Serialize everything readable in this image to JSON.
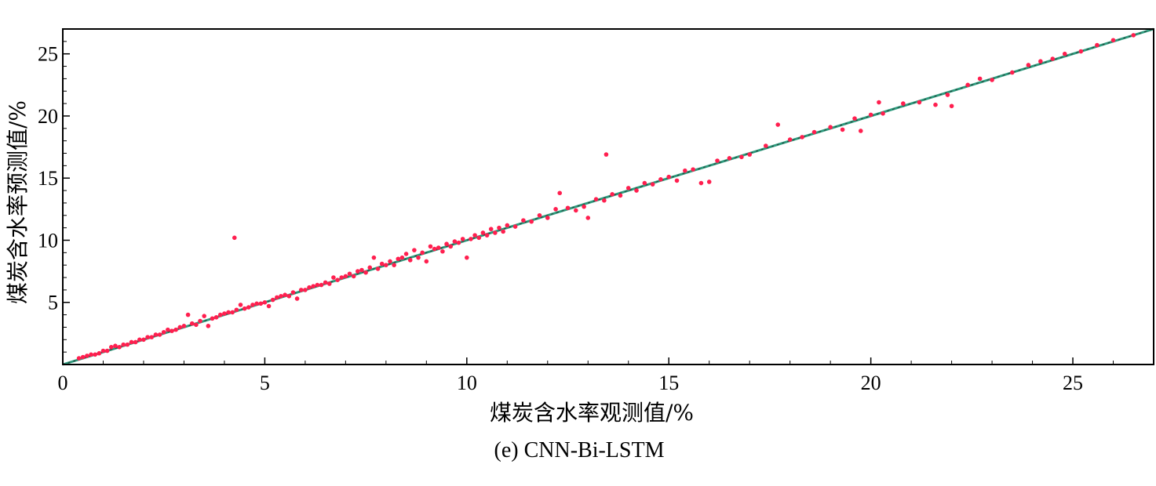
{
  "chart_data": {
    "type": "scatter",
    "title": "",
    "caption": "(e) CNN-Bi-LSTM",
    "xlabel": "煤炭含水率观测值/%",
    "ylabel": "煤炭含水率预测值/%",
    "xlim": [
      0,
      27
    ],
    "ylim": [
      0,
      27
    ],
    "x_ticks": [
      0,
      5,
      10,
      15,
      20,
      25
    ],
    "y_ticks": [
      5,
      10,
      15,
      20,
      25
    ],
    "grid": false,
    "reference_line": {
      "from": [
        0,
        0
      ],
      "to": [
        27,
        27
      ],
      "color": "#2e9c7e"
    },
    "colors": {
      "points": "#ff1f4f",
      "line": "#2e9c7e",
      "dense": "#222222",
      "axis": "#000000"
    },
    "points": [
      [
        0.4,
        0.5
      ],
      [
        0.5,
        0.6
      ],
      [
        0.6,
        0.7
      ],
      [
        0.7,
        0.8
      ],
      [
        0.8,
        0.8
      ],
      [
        0.9,
        0.9
      ],
      [
        1.0,
        1.1
      ],
      [
        1.1,
        1.1
      ],
      [
        1.2,
        1.4
      ],
      [
        1.3,
        1.5
      ],
      [
        1.4,
        1.4
      ],
      [
        1.5,
        1.6
      ],
      [
        1.6,
        1.6
      ],
      [
        1.7,
        1.8
      ],
      [
        1.8,
        1.8
      ],
      [
        1.9,
        2.0
      ],
      [
        2.0,
        2.0
      ],
      [
        2.1,
        2.2
      ],
      [
        2.2,
        2.2
      ],
      [
        2.3,
        2.4
      ],
      [
        2.4,
        2.4
      ],
      [
        2.5,
        2.6
      ],
      [
        2.6,
        2.8
      ],
      [
        2.7,
        2.7
      ],
      [
        2.8,
        2.8
      ],
      [
        2.9,
        3.0
      ],
      [
        3.0,
        3.1
      ],
      [
        3.1,
        4.0
      ],
      [
        3.2,
        3.3
      ],
      [
        3.3,
        3.2
      ],
      [
        3.4,
        3.5
      ],
      [
        3.5,
        3.9
      ],
      [
        3.6,
        3.1
      ],
      [
        3.7,
        3.7
      ],
      [
        3.8,
        3.8
      ],
      [
        3.9,
        4.0
      ],
      [
        4.0,
        4.1
      ],
      [
        4.1,
        4.2
      ],
      [
        4.2,
        4.2
      ],
      [
        4.25,
        10.2
      ],
      [
        4.3,
        4.4
      ],
      [
        4.4,
        4.8
      ],
      [
        4.5,
        4.5
      ],
      [
        4.6,
        4.6
      ],
      [
        4.7,
        4.8
      ],
      [
        4.8,
        4.9
      ],
      [
        4.9,
        4.9
      ],
      [
        5.0,
        5.0
      ],
      [
        5.1,
        4.7
      ],
      [
        5.2,
        5.2
      ],
      [
        5.3,
        5.4
      ],
      [
        5.4,
        5.5
      ],
      [
        5.5,
        5.6
      ],
      [
        5.6,
        5.5
      ],
      [
        5.7,
        5.8
      ],
      [
        5.8,
        5.3
      ],
      [
        5.9,
        6.0
      ],
      [
        6.0,
        6.0
      ],
      [
        6.1,
        6.2
      ],
      [
        6.2,
        6.3
      ],
      [
        6.3,
        6.4
      ],
      [
        6.4,
        6.4
      ],
      [
        6.5,
        6.6
      ],
      [
        6.6,
        6.5
      ],
      [
        6.7,
        7.0
      ],
      [
        6.8,
        6.8
      ],
      [
        6.9,
        7.0
      ],
      [
        7.0,
        7.1
      ],
      [
        7.1,
        7.3
      ],
      [
        7.2,
        7.1
      ],
      [
        7.3,
        7.5
      ],
      [
        7.4,
        7.6
      ],
      [
        7.5,
        7.4
      ],
      [
        7.6,
        7.8
      ],
      [
        7.7,
        8.6
      ],
      [
        7.8,
        7.7
      ],
      [
        7.9,
        8.1
      ],
      [
        8.0,
        8.0
      ],
      [
        8.1,
        8.3
      ],
      [
        8.2,
        8.0
      ],
      [
        8.3,
        8.5
      ],
      [
        8.4,
        8.6
      ],
      [
        8.5,
        8.9
      ],
      [
        8.6,
        8.4
      ],
      [
        8.7,
        9.2
      ],
      [
        8.8,
        8.6
      ],
      [
        8.9,
        9.0
      ],
      [
        9.0,
        8.3
      ],
      [
        9.1,
        9.5
      ],
      [
        9.2,
        9.3
      ],
      [
        9.3,
        9.4
      ],
      [
        9.4,
        9.1
      ],
      [
        9.5,
        9.7
      ],
      [
        9.6,
        9.5
      ],
      [
        9.7,
        9.9
      ],
      [
        9.8,
        9.8
      ],
      [
        9.9,
        10.1
      ],
      [
        10.0,
        8.6
      ],
      [
        10.1,
        10.1
      ],
      [
        10.2,
        10.4
      ],
      [
        10.3,
        10.2
      ],
      [
        10.4,
        10.6
      ],
      [
        10.5,
        10.4
      ],
      [
        10.6,
        10.9
      ],
      [
        10.7,
        10.6
      ],
      [
        10.8,
        11.0
      ],
      [
        10.9,
        10.7
      ],
      [
        11.0,
        11.2
      ],
      [
        11.2,
        11.1
      ],
      [
        11.4,
        11.6
      ],
      [
        11.6,
        11.5
      ],
      [
        11.8,
        12.0
      ],
      [
        12.0,
        11.8
      ],
      [
        12.2,
        12.5
      ],
      [
        12.3,
        13.8
      ],
      [
        12.5,
        12.6
      ],
      [
        12.7,
        12.4
      ],
      [
        12.9,
        12.7
      ],
      [
        13.0,
        11.8
      ],
      [
        13.2,
        13.3
      ],
      [
        13.4,
        13.2
      ],
      [
        13.45,
        16.9
      ],
      [
        13.6,
        13.7
      ],
      [
        13.8,
        13.6
      ],
      [
        14.0,
        14.2
      ],
      [
        14.2,
        14.0
      ],
      [
        14.4,
        14.6
      ],
      [
        14.6,
        14.5
      ],
      [
        14.8,
        14.9
      ],
      [
        15.0,
        15.1
      ],
      [
        15.2,
        14.8
      ],
      [
        15.4,
        15.6
      ],
      [
        15.6,
        15.7
      ],
      [
        15.8,
        14.6
      ],
      [
        16.0,
        14.7
      ],
      [
        16.2,
        16.4
      ],
      [
        16.5,
        16.6
      ],
      [
        16.8,
        16.7
      ],
      [
        17.0,
        16.9
      ],
      [
        17.4,
        17.6
      ],
      [
        17.7,
        19.3
      ],
      [
        18.0,
        18.1
      ],
      [
        18.3,
        18.3
      ],
      [
        18.6,
        18.7
      ],
      [
        19.0,
        19.1
      ],
      [
        19.3,
        18.9
      ],
      [
        19.6,
        19.8
      ],
      [
        19.75,
        18.8
      ],
      [
        20.0,
        20.1
      ],
      [
        20.3,
        20.2
      ],
      [
        20.2,
        21.1
      ],
      [
        20.8,
        21.0
      ],
      [
        21.2,
        21.1
      ],
      [
        21.6,
        20.9
      ],
      [
        21.9,
        21.7
      ],
      [
        22.0,
        20.8
      ],
      [
        22.4,
        22.5
      ],
      [
        22.7,
        23.0
      ],
      [
        23.0,
        22.9
      ],
      [
        23.5,
        23.5
      ],
      [
        23.9,
        24.1
      ],
      [
        24.2,
        24.4
      ],
      [
        24.5,
        24.6
      ],
      [
        24.8,
        25.0
      ],
      [
        25.2,
        25.2
      ],
      [
        25.6,
        25.7
      ],
      [
        26.0,
        26.1
      ],
      [
        26.5,
        26.5
      ]
    ]
  }
}
